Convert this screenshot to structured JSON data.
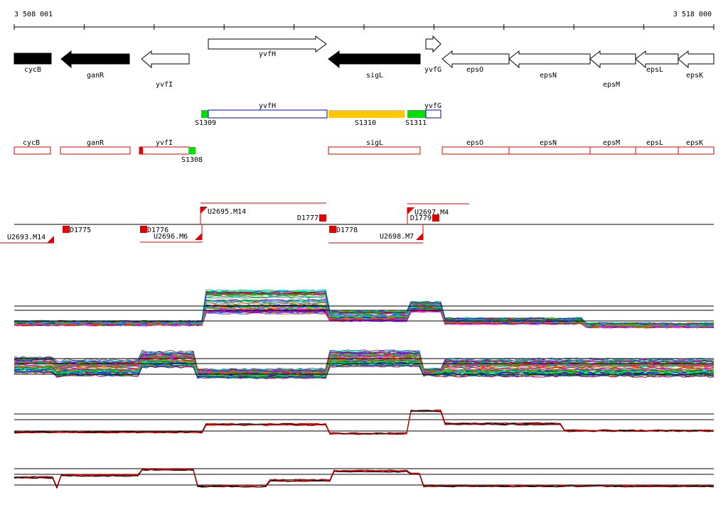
{
  "ruler": {
    "start_label": "3 508 001",
    "end_label": "3 518 000"
  },
  "genes": [
    {
      "name": "cycB",
      "strand": "-",
      "filled": true
    },
    {
      "name": "ganR",
      "strand": "-",
      "filled": true
    },
    {
      "name": "yvfI",
      "strand": "-",
      "filled": false
    },
    {
      "name": "yvfH",
      "strand": "+",
      "filled": false
    },
    {
      "name": "sigL",
      "strand": "-",
      "filled": true
    },
    {
      "name": "yvfG",
      "strand": "+",
      "filled": false
    },
    {
      "name": "epsO",
      "strand": "-",
      "filled": false
    },
    {
      "name": "epsN",
      "strand": "-",
      "filled": false
    },
    {
      "name": "epsM",
      "strand": "-",
      "filled": false
    },
    {
      "name": "epsL",
      "strand": "-",
      "filled": false
    },
    {
      "name": "epsK",
      "strand": "-",
      "filled": false
    }
  ],
  "segment_track": {
    "genes": [
      "yvfH",
      "yvfG"
    ],
    "segments": [
      "S1309",
      "S1310",
      "S1311"
    ],
    "colors": {
      "outline": "#0000c0",
      "yellow": "#ffc800",
      "green": "#00e000"
    }
  },
  "transcript_track": {
    "genes": [
      "cycB",
      "ganR",
      "yvfI",
      "sigL",
      "epsO",
      "epsN",
      "epsM",
      "epsL",
      "epsK"
    ],
    "segment": "S1308",
    "colors": {
      "outline": "#e00000",
      "green": "#00e000"
    }
  },
  "features": {
    "upshifts": [
      "U2693.M14",
      "U2695.M14",
      "U2697.M4",
      "U2698.M7",
      "U2696.M6"
    ],
    "downshifts": [
      "D1775",
      "D1776",
      "D1777",
      "D1778",
      "D1779"
    ],
    "color": "#e00000"
  },
  "expression_panels": [
    {
      "id": "panel1",
      "style": "multi"
    },
    {
      "id": "panel2",
      "style": "multi"
    },
    {
      "id": "panel3",
      "style": "pair"
    },
    {
      "id": "panel4",
      "style": "pair"
    }
  ],
  "colors": {
    "black": "#000000",
    "red": "#e00000",
    "background": "#ffffff"
  }
}
